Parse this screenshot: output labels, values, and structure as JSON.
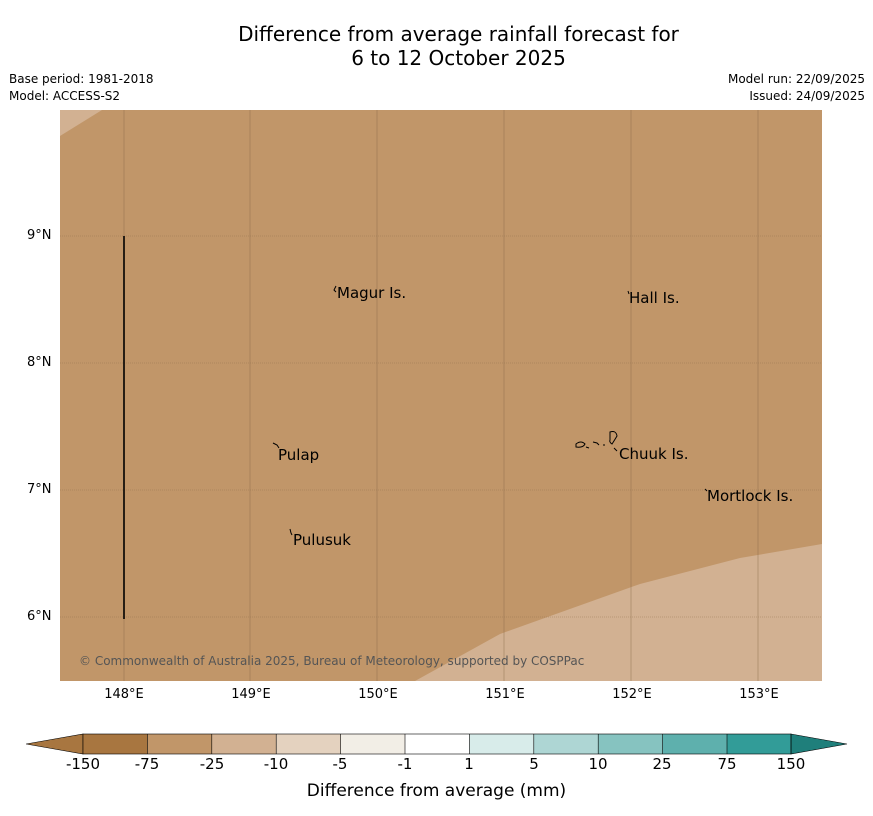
{
  "title": {
    "line1": "Difference from average rainfall forecast for",
    "line2": "6 to 12 October 2025"
  },
  "meta": {
    "base_period": "Base period: 1981-2018",
    "model": "Model: ACCESS-S2",
    "model_run": "Model run: 22/09/2025",
    "issued": "Issued: 24/09/2025"
  },
  "map": {
    "latitudes": [
      "9°N",
      "8°N",
      "7°N",
      "6°N"
    ],
    "longitudes": [
      "148°E",
      "149°E",
      "150°E",
      "151°E",
      "152°E",
      "153°E"
    ],
    "places": [
      "Magur Is.",
      "Hall Is.",
      "Pulap",
      "Chuuk Is.",
      "Mortlock Is.",
      "Pulusuk"
    ],
    "copyright": "© Commonwealth of Australia 2025, Bureau of Meteorology, supported by COSPPac",
    "colors": {
      "main_fill": "#c19669",
      "light_fill": "#d2b192",
      "grid": "#8a6a48"
    }
  },
  "colorbar": {
    "title": "Difference from average (mm)",
    "ticks": [
      "-150",
      "-75",
      "-25",
      "-10",
      "-5",
      "-1",
      "1",
      "5",
      "10",
      "25",
      "75",
      "150"
    ],
    "colors": [
      "#a87640",
      "#c19669",
      "#d2b192",
      "#e4d2bf",
      "#f2eee6",
      "#ffffff",
      "#d8ecea",
      "#aed6d4",
      "#86c3c0",
      "#5eb0ad",
      "#329c98",
      "#1f7f7b"
    ]
  }
}
